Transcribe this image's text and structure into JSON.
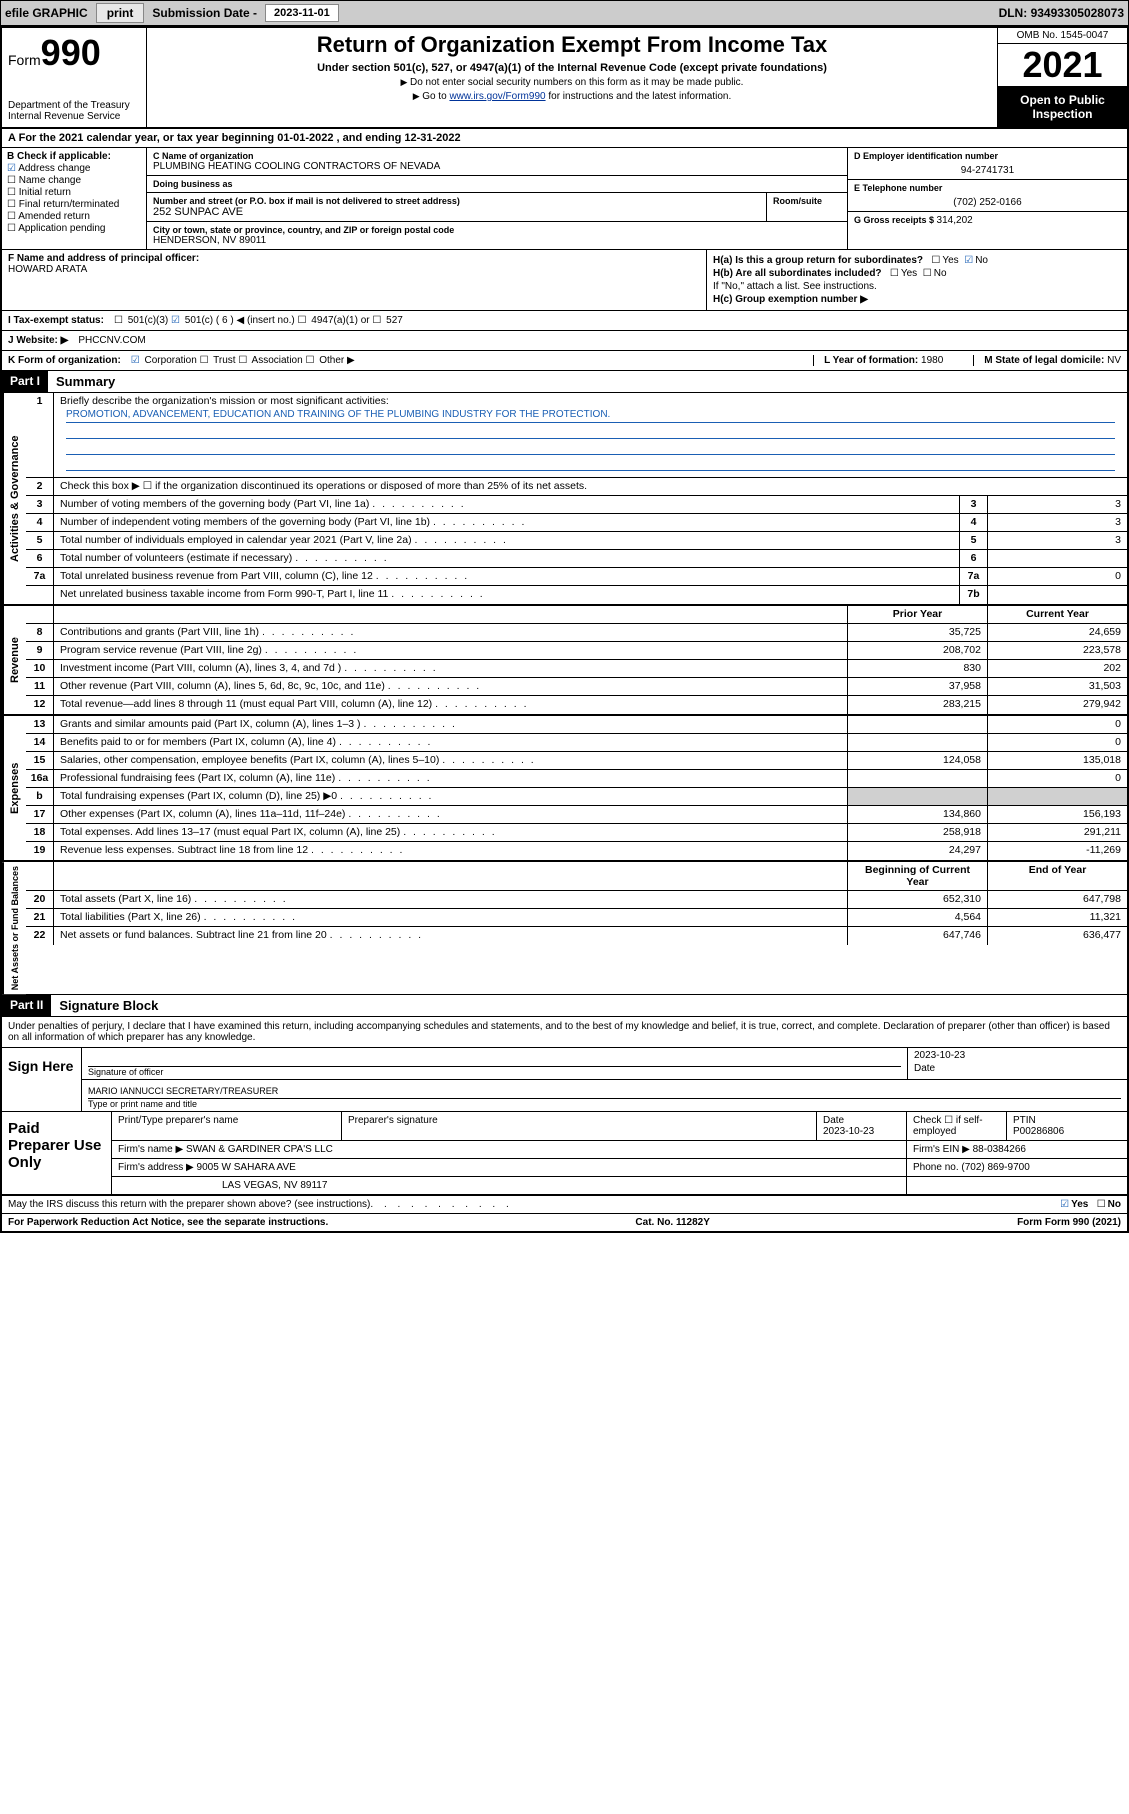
{
  "topbar": {
    "efile": "efile GRAPHIC",
    "print": "print",
    "subdate_label": "Submission Date - ",
    "subdate": "2023-11-01",
    "dln_label": "DLN: ",
    "dln": "93493305028073"
  },
  "header": {
    "form_label": "Form",
    "form_num": "990",
    "dept": "Department of the Treasury\nInternal Revenue Service",
    "title": "Return of Organization Exempt From Income Tax",
    "subtitle": "Under section 501(c), 527, or 4947(a)(1) of the Internal Revenue Code (except private foundations)",
    "note1": "Do not enter social security numbers on this form as it may be made public.",
    "note2_pre": "Go to ",
    "note2_link": "www.irs.gov/Form990",
    "note2_post": " for instructions and the latest information.",
    "omb": "OMB No. 1545-0047",
    "year": "2021",
    "open": "Open to Public Inspection"
  },
  "lineA": {
    "text": "For the 2021 calendar year, or tax year beginning 01-01-2022   , and ending 12-31-2022"
  },
  "blockB": {
    "label": "B Check if applicable:",
    "items": [
      {
        "label": "Address change",
        "checked": true
      },
      {
        "label": "Name change",
        "checked": false
      },
      {
        "label": "Initial return",
        "checked": false
      },
      {
        "label": "Final return/terminated",
        "checked": false
      },
      {
        "label": "Amended return",
        "checked": false
      },
      {
        "label": "Application pending",
        "checked": false
      }
    ]
  },
  "blockC": {
    "name_label": "C Name of organization",
    "name": "PLUMBING HEATING COOLING CONTRACTORS OF NEVADA",
    "dba_label": "Doing business as",
    "dba": "",
    "addr_label": "Number and street (or P.O. box if mail is not delivered to street address)",
    "addr": "252 SUNPAC AVE",
    "room_label": "Room/suite",
    "city_label": "City or town, state or province, country, and ZIP or foreign postal code",
    "city": "HENDERSON, NV  89011"
  },
  "blockD": {
    "ein_label": "D Employer identification number",
    "ein": "94-2741731",
    "phone_label": "E Telephone number",
    "phone": "(702) 252-0166",
    "gross_label": "G Gross receipts $ ",
    "gross": "314,202"
  },
  "rowF": {
    "label": "F Name and address of principal officer:",
    "name": "HOWARD ARATA",
    "ha_label": "H(a)  Is this a group return for subordinates?",
    "ha_yes": "Yes",
    "ha_no": "No",
    "ha_checked": "no",
    "hb_label": "H(b)  Are all subordinates included?",
    "hb_yes": "Yes",
    "hb_no": "No",
    "hb_note": "If \"No,\" attach a list. See instructions.",
    "hc_label": "H(c)  Group exemption number ▶"
  },
  "rowI": {
    "label": "I   Tax-exempt status:",
    "opts": [
      "501(c)(3)",
      "501(c) ( 6 ) ◀ (insert no.)",
      "4947(a)(1) or",
      "527"
    ],
    "checked_idx": 1
  },
  "rowJ": {
    "label": "J   Website: ▶",
    "value": "PHCCNV.COM"
  },
  "rowK": {
    "label": "K Form of organization:",
    "opts": [
      "Corporation",
      "Trust",
      "Association",
      "Other ▶"
    ],
    "checked_idx": 0,
    "year_label": "L Year of formation: ",
    "year": "1980",
    "state_label": "M State of legal domicile: ",
    "state": "NV"
  },
  "part1": {
    "hdr": "Part I",
    "title": "Summary",
    "q1_label": "Briefly describe the organization's mission or most significant activities:",
    "q1_text": "PROMOTION, ADVANCEMENT, EDUCATION AND TRAINING OF THE PLUMBING INDUSTRY FOR THE PROTECTION.",
    "q2": "Check this box ▶ ☐  if the organization discontinued its operations or disposed of more than 25% of its net assets.",
    "sections": {
      "gov_label": "Activities & Governance",
      "rev_label": "Revenue",
      "exp_label": "Expenses",
      "net_label": "Net Assets or Fund Balances"
    },
    "col_hdr_prior": "Prior Year",
    "col_hdr_current": "Current Year",
    "col_hdr_begin": "Beginning of Current Year",
    "col_hdr_end": "End of Year",
    "lines_gov": [
      {
        "n": "3",
        "d": "Number of voting members of the governing body (Part VI, line 1a)",
        "box": "3",
        "v": "3"
      },
      {
        "n": "4",
        "d": "Number of independent voting members of the governing body (Part VI, line 1b)",
        "box": "4",
        "v": "3"
      },
      {
        "n": "5",
        "d": "Total number of individuals employed in calendar year 2021 (Part V, line 2a)",
        "box": "5",
        "v": "3"
      },
      {
        "n": "6",
        "d": "Total number of volunteers (estimate if necessary)",
        "box": "6",
        "v": ""
      },
      {
        "n": "7a",
        "d": "Total unrelated business revenue from Part VIII, column (C), line 12",
        "box": "7a",
        "v": "0"
      },
      {
        "n": "",
        "d": "Net unrelated business taxable income from Form 990-T, Part I, line 11",
        "box": "7b",
        "v": ""
      }
    ],
    "lines_rev": [
      {
        "n": "8",
        "d": "Contributions and grants (Part VIII, line 1h)",
        "p": "35,725",
        "c": "24,659"
      },
      {
        "n": "9",
        "d": "Program service revenue (Part VIII, line 2g)",
        "p": "208,702",
        "c": "223,578"
      },
      {
        "n": "10",
        "d": "Investment income (Part VIII, column (A), lines 3, 4, and 7d )",
        "p": "830",
        "c": "202"
      },
      {
        "n": "11",
        "d": "Other revenue (Part VIII, column (A), lines 5, 6d, 8c, 9c, 10c, and 11e)",
        "p": "37,958",
        "c": "31,503"
      },
      {
        "n": "12",
        "d": "Total revenue—add lines 8 through 11 (must equal Part VIII, column (A), line 12)",
        "p": "283,215",
        "c": "279,942"
      }
    ],
    "lines_exp": [
      {
        "n": "13",
        "d": "Grants and similar amounts paid (Part IX, column (A), lines 1–3 )",
        "p": "",
        "c": "0"
      },
      {
        "n": "14",
        "d": "Benefits paid to or for members (Part IX, column (A), line 4)",
        "p": "",
        "c": "0"
      },
      {
        "n": "15",
        "d": "Salaries, other compensation, employee benefits (Part IX, column (A), lines 5–10)",
        "p": "124,058",
        "c": "135,018"
      },
      {
        "n": "16a",
        "d": "Professional fundraising fees (Part IX, column (A), line 11e)",
        "p": "",
        "c": "0"
      },
      {
        "n": "b",
        "d": "Total fundraising expenses (Part IX, column (D), line 25) ▶0",
        "p": "grey",
        "c": "grey"
      },
      {
        "n": "17",
        "d": "Other expenses (Part IX, column (A), lines 11a–11d, 11f–24e)",
        "p": "134,860",
        "c": "156,193"
      },
      {
        "n": "18",
        "d": "Total expenses. Add lines 13–17 (must equal Part IX, column (A), line 25)",
        "p": "258,918",
        "c": "291,211"
      },
      {
        "n": "19",
        "d": "Revenue less expenses. Subtract line 18 from line 12",
        "p": "24,297",
        "c": "-11,269"
      }
    ],
    "lines_net": [
      {
        "n": "20",
        "d": "Total assets (Part X, line 16)",
        "p": "652,310",
        "c": "647,798"
      },
      {
        "n": "21",
        "d": "Total liabilities (Part X, line 26)",
        "p": "4,564",
        "c": "11,321"
      },
      {
        "n": "22",
        "d": "Net assets or fund balances. Subtract line 21 from line 20",
        "p": "647,746",
        "c": "636,477"
      }
    ]
  },
  "part2": {
    "hdr": "Part II",
    "title": "Signature Block",
    "decl": "Under penalties of perjury, I declare that I have examined this return, including accompanying schedules and statements, and to the best of my knowledge and belief, it is true, correct, and complete. Declaration of preparer (other than officer) is based on all information of which preparer has any knowledge.",
    "sign_here": "Sign Here",
    "sig_officer_label": "Signature of officer",
    "sig_date_label": "Date",
    "sig_date": "2023-10-23",
    "name_title": "MARIO IANNUCCI  SECRETARY/TREASURER",
    "name_title_label": "Type or print name and title",
    "paid": "Paid Preparer Use Only",
    "prep_name_label": "Print/Type preparer's name",
    "prep_sig_label": "Preparer's signature",
    "prep_date_label": "Date",
    "prep_date": "2023-10-23",
    "prep_check_label": "Check ☐ if self-employed",
    "ptin_label": "PTIN",
    "ptin": "P00286806",
    "firm_name_label": "Firm's name    ▶ ",
    "firm_name": "SWAN & GARDINER CPA'S LLC",
    "firm_ein_label": "Firm's EIN ▶ ",
    "firm_ein": "88-0384266",
    "firm_addr_label": "Firm's address ▶ ",
    "firm_addr1": "9005 W SAHARA AVE",
    "firm_addr2": "LAS VEGAS, NV  89117",
    "firm_phone_label": "Phone no. ",
    "firm_phone": "(702) 869-9700"
  },
  "footer": {
    "discuss": "May the IRS discuss this return with the preparer shown above? (see instructions)",
    "yes": "Yes",
    "no": "No",
    "paperwork": "For Paperwork Reduction Act Notice, see the separate instructions.",
    "cat": "Cat. No. 11282Y",
    "form": "Form 990 (2021)"
  }
}
